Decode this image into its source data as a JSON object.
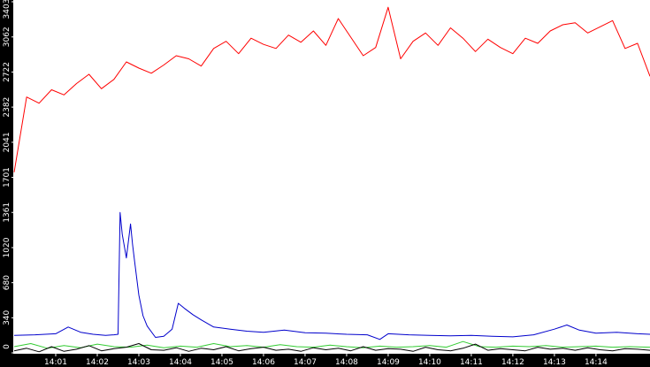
{
  "chart_data": {
    "type": "line",
    "title": "",
    "xlabel": "",
    "ylabel": "",
    "ylim": [
      0,
      3403
    ],
    "xlim_minutes": [
      0.0,
      15.3
    ],
    "grid": false,
    "legend": "none",
    "background": "#ffffff",
    "axis_band_color": "#000000",
    "tick_label_color": "#ffffff",
    "y_ticks": [
      {
        "value": 0,
        "label": "0"
      },
      {
        "value": 340,
        "label": "340"
      },
      {
        "value": 680,
        "label": "680"
      },
      {
        "value": 1020,
        "label": "1020"
      },
      {
        "value": 1361,
        "label": "1361"
      },
      {
        "value": 1701,
        "label": "1701"
      },
      {
        "value": 2041,
        "label": "2041"
      },
      {
        "value": 2382,
        "label": "2382"
      },
      {
        "value": 2722,
        "label": "2722"
      },
      {
        "value": 3062,
        "label": "3062"
      },
      {
        "value": 3403,
        "label": "3403"
      }
    ],
    "x_ticks": [
      {
        "minute": 1,
        "label": "14:01"
      },
      {
        "minute": 2,
        "label": "14:02"
      },
      {
        "minute": 3,
        "label": "14:03"
      },
      {
        "minute": 4,
        "label": "14:04"
      },
      {
        "minute": 5,
        "label": "14:05"
      },
      {
        "minute": 6,
        "label": "14:06"
      },
      {
        "minute": 7,
        "label": "14:07"
      },
      {
        "minute": 8,
        "label": "14:08"
      },
      {
        "minute": 9,
        "label": "14:09"
      },
      {
        "minute": 10,
        "label": "14:10"
      },
      {
        "minute": 11,
        "label": "14:11"
      },
      {
        "minute": 12,
        "label": "14:12"
      },
      {
        "minute": 13,
        "label": "14:13"
      },
      {
        "minute": 14,
        "label": "14:14"
      }
    ],
    "series": [
      {
        "color": "#ff0000",
        "x": [
          0.0,
          0.3,
          0.6,
          0.9,
          1.2,
          1.5,
          1.8,
          2.1,
          2.4,
          2.7,
          3.0,
          3.3,
          3.6,
          3.9,
          4.2,
          4.5,
          4.8,
          5.1,
          5.4,
          5.7,
          6.0,
          6.3,
          6.6,
          6.9,
          7.2,
          7.5,
          7.8,
          8.1,
          8.4,
          8.7,
          9.0,
          9.3,
          9.6,
          9.9,
          10.2,
          10.5,
          10.8,
          11.1,
          11.4,
          11.7,
          12.0,
          12.3,
          12.6,
          12.9,
          13.2,
          13.5,
          13.8,
          14.1,
          14.4,
          14.7,
          15.0,
          15.3
        ],
        "values": [
          1750,
          2480,
          2420,
          2550,
          2500,
          2610,
          2700,
          2560,
          2650,
          2820,
          2760,
          2710,
          2790,
          2880,
          2850,
          2780,
          2950,
          3020,
          2900,
          3050,
          2990,
          2950,
          3080,
          3010,
          3120,
          2980,
          3240,
          3060,
          2880,
          2960,
          3350,
          2850,
          3020,
          3100,
          2980,
          3150,
          3050,
          2920,
          3040,
          2960,
          2900,
          3050,
          3000,
          3120,
          3180,
          3200,
          3100,
          3160,
          3220,
          2950,
          3000,
          2680
        ]
      },
      {
        "color": "#0000cc",
        "x": [
          0.0,
          0.5,
          1.0,
          1.3,
          1.6,
          1.9,
          2.2,
          2.4,
          2.5,
          2.55,
          2.6,
          2.7,
          2.8,
          2.85,
          2.9,
          3.0,
          3.1,
          3.2,
          3.4,
          3.6,
          3.8,
          3.95,
          4.1,
          4.3,
          4.5,
          4.8,
          5.2,
          5.6,
          6.0,
          6.5,
          7.0,
          7.5,
          8.0,
          8.5,
          8.8,
          9.0,
          9.5,
          10.0,
          10.5,
          11.0,
          11.5,
          12.0,
          12.5,
          13.0,
          13.3,
          13.6,
          14.0,
          14.5,
          15.0,
          15.3
        ],
        "values": [
          170,
          175,
          185,
          250,
          200,
          180,
          170,
          175,
          180,
          1360,
          1150,
          920,
          1250,
          1050,
          880,
          560,
          360,
          260,
          150,
          160,
          230,
          480,
          430,
          370,
          320,
          250,
          230,
          210,
          200,
          220,
          195,
          190,
          180,
          175,
          130,
          185,
          175,
          170,
          165,
          170,
          160,
          155,
          175,
          230,
          270,
          220,
          190,
          200,
          185,
          180
        ]
      },
      {
        "color": "#33cc33",
        "x": [
          0.0,
          0.4,
          0.8,
          1.2,
          1.6,
          2.0,
          2.4,
          2.8,
          3.2,
          3.6,
          4.0,
          4.4,
          4.8,
          5.2,
          5.6,
          6.0,
          6.4,
          6.8,
          7.2,
          7.6,
          8.0,
          8.4,
          8.8,
          9.2,
          9.6,
          10.0,
          10.4,
          10.8,
          11.2,
          11.6,
          12.0,
          12.4,
          12.8,
          13.2,
          13.6,
          14.0,
          14.4,
          14.8,
          15.3
        ],
        "values": [
          60,
          90,
          45,
          70,
          50,
          85,
          60,
          55,
          75,
          50,
          65,
          55,
          90,
          60,
          70,
          55,
          80,
          60,
          55,
          75,
          60,
          50,
          65,
          55,
          60,
          70,
          55,
          110,
          60,
          55,
          65,
          60,
          70,
          55,
          60,
          65,
          55,
          60,
          55
        ]
      },
      {
        "color": "#000000",
        "x": [
          0.0,
          0.3,
          0.6,
          0.9,
          1.2,
          1.5,
          1.8,
          2.1,
          2.4,
          2.7,
          3.0,
          3.3,
          3.6,
          3.9,
          4.2,
          4.5,
          4.8,
          5.1,
          5.4,
          5.7,
          6.0,
          6.3,
          6.6,
          6.9,
          7.2,
          7.5,
          7.8,
          8.1,
          8.4,
          8.7,
          9.0,
          9.3,
          9.6,
          9.9,
          10.2,
          10.5,
          10.8,
          11.1,
          11.4,
          11.7,
          12.0,
          12.3,
          12.6,
          12.9,
          13.2,
          13.5,
          13.8,
          14.1,
          14.4,
          14.7,
          15.0,
          15.3
        ],
        "values": [
          20,
          45,
          10,
          60,
          15,
          35,
          70,
          20,
          40,
          55,
          90,
          30,
          25,
          50,
          15,
          45,
          30,
          60,
          20,
          40,
          55,
          25,
          35,
          15,
          50,
          30,
          45,
          20,
          60,
          25,
          40,
          35,
          15,
          55,
          30,
          20,
          45,
          85,
          25,
          40,
          30,
          20,
          55,
          35,
          45,
          25,
          50,
          30,
          20,
          40,
          35,
          25
        ]
      }
    ]
  }
}
